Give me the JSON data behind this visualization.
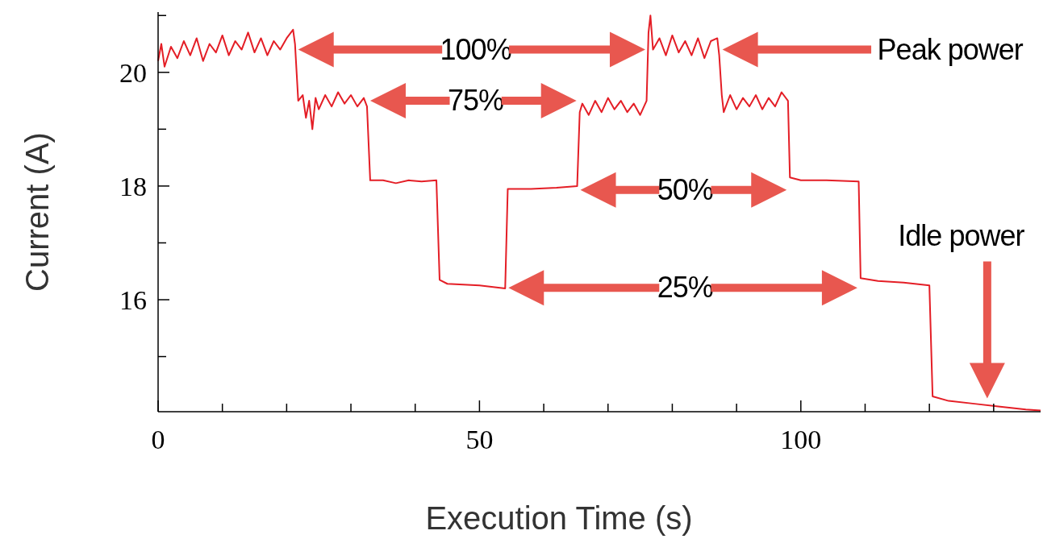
{
  "chart_data": {
    "type": "line",
    "xlabel": "Execution Time (s)",
    "ylabel": "Current (A)",
    "xlim": [
      0,
      137.3
    ],
    "ylim": [
      14.03,
      21.06
    ],
    "xticks": [
      0,
      {
        "value": 10,
        "label": null
      },
      {
        "value": 20,
        "label": null
      },
      {
        "value": 30,
        "label": null
      },
      {
        "value": 40,
        "label": null
      },
      50,
      {
        "value": 60,
        "label": null
      },
      {
        "value": 70,
        "label": null
      },
      {
        "value": 80,
        "label": null
      },
      {
        "value": 90,
        "label": null
      },
      100,
      {
        "value": 110,
        "label": null
      },
      {
        "value": 120,
        "label": null
      },
      {
        "value": 130,
        "label": null
      }
    ],
    "yticks": [
      {
        "value": 15,
        "label": null
      },
      16,
      {
        "value": 17,
        "label": null
      },
      18,
      {
        "value": 19,
        "label": null
      },
      20,
      {
        "value": 21,
        "label": null
      }
    ],
    "grid": false,
    "marker": "none",
    "line_style": "solid",
    "series": [
      {
        "color": "#e41e26",
        "x": [
          0,
          0.5,
          1,
          2,
          3,
          4,
          5,
          6,
          7,
          8,
          9,
          10,
          11,
          12,
          13,
          14,
          15,
          16,
          17,
          18,
          19,
          20,
          21,
          21.3,
          21.8,
          22.5,
          23,
          23.5,
          24,
          24.5,
          25,
          26,
          27,
          28,
          29,
          30,
          31,
          32,
          32.5,
          33,
          35,
          37,
          39,
          41,
          43.3,
          43.8,
          45,
          50,
          54,
          54.4,
          58,
          62,
          65.2,
          65.6,
          66,
          67,
          68,
          69,
          70,
          71,
          72,
          73,
          74,
          75,
          76,
          76.3,
          76.6,
          77,
          78,
          79,
          80,
          81,
          82,
          83,
          84,
          85,
          86,
          87,
          87.3,
          87.7,
          88,
          89,
          90,
          91,
          92,
          93,
          94,
          95,
          96,
          97,
          98,
          98.3,
          100,
          104,
          109,
          109.3,
          112,
          116,
          120,
          120.5,
          123,
          127,
          131,
          135,
          137.3
        ],
        "values": [
          20.2,
          20.5,
          20.1,
          20.45,
          20.25,
          20.55,
          20.3,
          20.6,
          20.2,
          20.5,
          20.35,
          20.65,
          20.3,
          20.55,
          20.4,
          20.7,
          20.35,
          20.6,
          20.3,
          20.55,
          20.4,
          20.6,
          20.75,
          20.5,
          19.5,
          19.6,
          19.2,
          19.5,
          19.0,
          19.55,
          19.35,
          19.6,
          19.4,
          19.65,
          19.45,
          19.6,
          19.4,
          19.55,
          19.4,
          18.1,
          18.1,
          18.05,
          18.1,
          18.08,
          18.1,
          16.35,
          16.28,
          16.25,
          16.2,
          17.95,
          17.95,
          17.97,
          18.0,
          19.3,
          19.45,
          19.25,
          19.5,
          19.3,
          19.55,
          19.35,
          19.5,
          19.3,
          19.45,
          19.25,
          19.5,
          20.7,
          21.0,
          20.4,
          20.6,
          20.3,
          20.65,
          20.35,
          20.55,
          20.3,
          20.6,
          20.25,
          20.55,
          20.6,
          20.3,
          19.6,
          19.3,
          19.6,
          19.35,
          19.55,
          19.4,
          19.6,
          19.35,
          19.55,
          19.4,
          19.65,
          19.5,
          18.15,
          18.1,
          18.1,
          18.08,
          16.38,
          16.33,
          16.3,
          16.25,
          14.3,
          14.22,
          14.17,
          14.12,
          14.07,
          14.05
        ]
      }
    ],
    "annotations": [
      "100%",
      "75%",
      "50%",
      "25%",
      "Peak power",
      "Idle power"
    ]
  }
}
